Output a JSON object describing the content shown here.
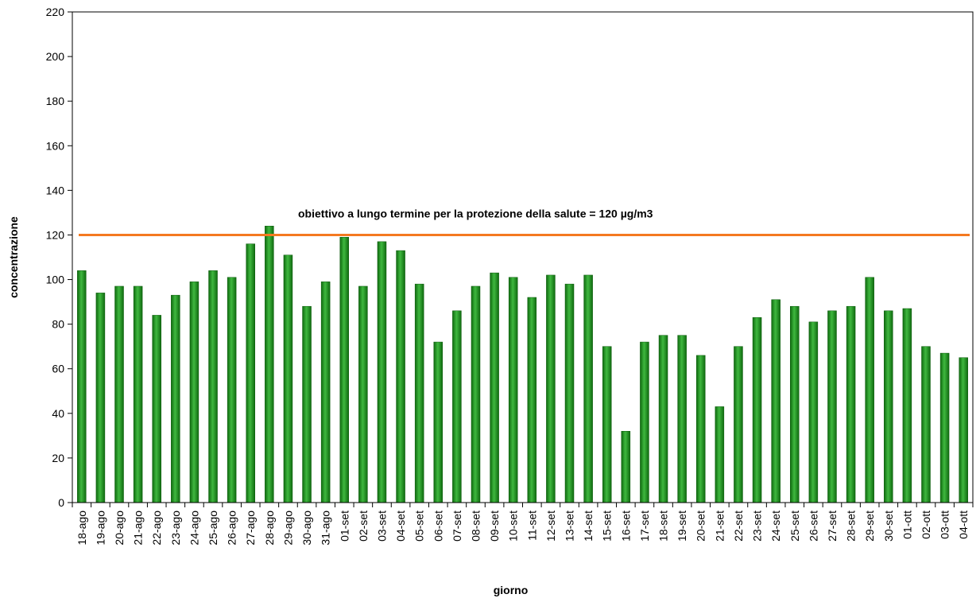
{
  "chart_data": {
    "type": "bar",
    "title": "",
    "xlabel": "giorno",
    "ylabel": "concentrazione",
    "ylim": [
      0,
      220
    ],
    "yticks": [
      0,
      20,
      40,
      60,
      80,
      100,
      120,
      140,
      160,
      180,
      200,
      220
    ],
    "grid": false,
    "categories": [
      "18-ago",
      "19-ago",
      "20-ago",
      "21-ago",
      "22-ago",
      "23-ago",
      "24-ago",
      "25-ago",
      "26-ago",
      "27-ago",
      "28-ago",
      "29-ago",
      "30-ago",
      "31-ago",
      "01-set",
      "02-set",
      "03-set",
      "04-set",
      "05-set",
      "06-set",
      "07-set",
      "08-set",
      "09-set",
      "10-set",
      "11-set",
      "12-set",
      "13-set",
      "14-set",
      "15-set",
      "16-set",
      "17-set",
      "18-set",
      "19-set",
      "20-set",
      "21-set",
      "22-set",
      "23-set",
      "24-set",
      "25-set",
      "26-set",
      "27-set",
      "28-set",
      "29-set",
      "30-set",
      "01-ott",
      "02-ott",
      "03-ott",
      "04-ott"
    ],
    "values": [
      104,
      94,
      97,
      97,
      84,
      93,
      99,
      104,
      101,
      116,
      124,
      111,
      88,
      99,
      119,
      97,
      117,
      113,
      98,
      72,
      86,
      97,
      103,
      101,
      92,
      102,
      98,
      102,
      70,
      32,
      72,
      75,
      75,
      66,
      43,
      70,
      83,
      91,
      88,
      81,
      86,
      88,
      101,
      86,
      87,
      70,
      67,
      65
    ],
    "bar_color": "#1f8a1f",
    "threshold": {
      "value": 120,
      "label": "obiettivo a lungo termine per la protezione della salute = 120 µg/m3",
      "color": "#f47920"
    }
  }
}
